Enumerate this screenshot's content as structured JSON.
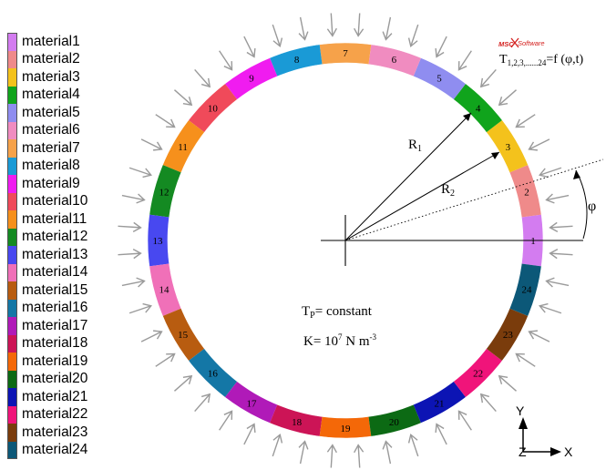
{
  "legend": {
    "items": [
      {
        "label": "material1",
        "color": "#d37cf0"
      },
      {
        "label": "material2",
        "color": "#ef8a8a"
      },
      {
        "label": "material3",
        "color": "#f4c21c"
      },
      {
        "label": "material4",
        "color": "#10a41c"
      },
      {
        "label": "material5",
        "color": "#8f8df0"
      },
      {
        "label": "material6",
        "color": "#f08cc0"
      },
      {
        "label": "material7",
        "color": "#f6a24a"
      },
      {
        "label": "material8",
        "color": "#1a9ad6"
      },
      {
        "label": "material9",
        "color": "#f01cf0"
      },
      {
        "label": "material10",
        "color": "#f04a5a"
      },
      {
        "label": "material11",
        "color": "#f6901c"
      },
      {
        "label": "material12",
        "color": "#148a22"
      },
      {
        "label": "material13",
        "color": "#4848f0"
      },
      {
        "label": "material14",
        "color": "#f070b8"
      },
      {
        "label": "material15",
        "color": "#b85c10"
      },
      {
        "label": "material16",
        "color": "#1477a6"
      },
      {
        "label": "material17",
        "color": "#b01ab8"
      },
      {
        "label": "material18",
        "color": "#cc1456"
      },
      {
        "label": "material19",
        "color": "#f46808"
      },
      {
        "label": "material20",
        "color": "#0c6a14"
      },
      {
        "label": "material21",
        "color": "#0c14b4"
      },
      {
        "label": "material22",
        "color": "#f0147a"
      },
      {
        "label": "material23",
        "color": "#7a3c0c"
      },
      {
        "label": "material24",
        "color": "#0c5878"
      }
    ]
  },
  "ring": {
    "segment_labels": [
      "1",
      "2",
      "3",
      "4",
      "5",
      "6",
      "7",
      "8",
      "9",
      "10",
      "11",
      "12",
      "13",
      "14",
      "15",
      "16",
      "17",
      "18",
      "19",
      "20",
      "21",
      "22",
      "23",
      "24"
    ]
  },
  "annotations": {
    "r1": "R",
    "r1_sub": "1",
    "r2": "R",
    "r2_sub": "2",
    "phi": "φ",
    "tp": "T",
    "tp_sub": "P",
    "tp_rest": "= constant",
    "k": "K= 10",
    "k_sup1": "7",
    "k_mid": " N m",
    "k_sup2": "-3",
    "t_formula_T": "T",
    "t_formula_sub": "1,2,3,......24",
    "t_formula_rest": "=f (φ,t)",
    "logo_msc": "MSC",
    "logo_software": "Software"
  },
  "axes": {
    "y": "Y",
    "z": "Z",
    "x": "X"
  },
  "colors": {
    "arrow": "#9a9a9a",
    "line": "#000000",
    "logo_red": "#d4201e"
  }
}
